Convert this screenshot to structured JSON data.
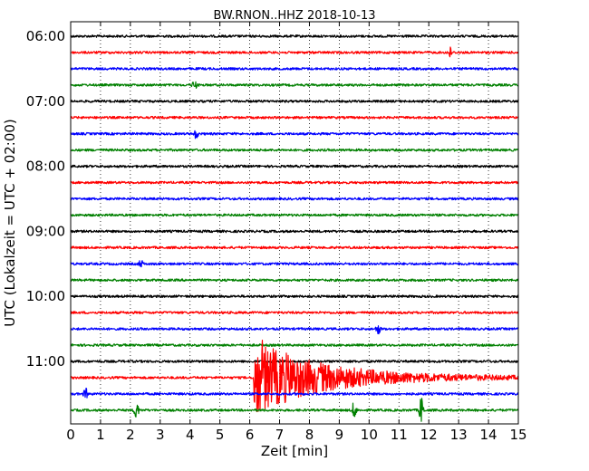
{
  "chart_data": {
    "type": "line",
    "title": "BW.RNON..HHZ 2018-10-13",
    "xlabel": "Zeit  [min]",
    "ylabel": "UTC (Lokalzeit = UTC + 02:00)",
    "xlim": [
      0,
      15
    ],
    "x_ticks": [
      "0",
      "1",
      "2",
      "3",
      "4",
      "5",
      "6",
      "7",
      "8",
      "9",
      "10",
      "11",
      "12",
      "13",
      "14",
      "15"
    ],
    "y_ticks": [
      "06:00",
      "07:00",
      "08:00",
      "09:00",
      "10:00",
      "11:00"
    ],
    "grid": "vertical dotted at each minute",
    "trace_count": 24,
    "trace_colors": [
      "#000000",
      "#ff0000",
      "#0000ff",
      "#008000"
    ],
    "events": [
      {
        "trace": 1,
        "minute": 12.7,
        "amplitude": 6
      },
      {
        "trace": 3,
        "minute": 4.15,
        "amplitude": 6
      },
      {
        "trace": 6,
        "minute": 4.2,
        "amplitude": 5
      },
      {
        "trace": 14,
        "minute": 2.35,
        "amplitude": 4
      },
      {
        "trace": 18,
        "minute": 10.3,
        "amplitude": 6
      },
      {
        "trace": 21,
        "minute": 6.2,
        "amplitude": 40
      },
      {
        "trace": 22,
        "minute": 0.5,
        "amplitude": 6
      },
      {
        "trace": 23,
        "minute": 2.2,
        "amplitude": 12
      },
      {
        "trace": 23,
        "minute": 9.5,
        "amplitude": 10
      },
      {
        "trace": 23,
        "minute": 11.75,
        "amplitude": 16
      }
    ]
  }
}
